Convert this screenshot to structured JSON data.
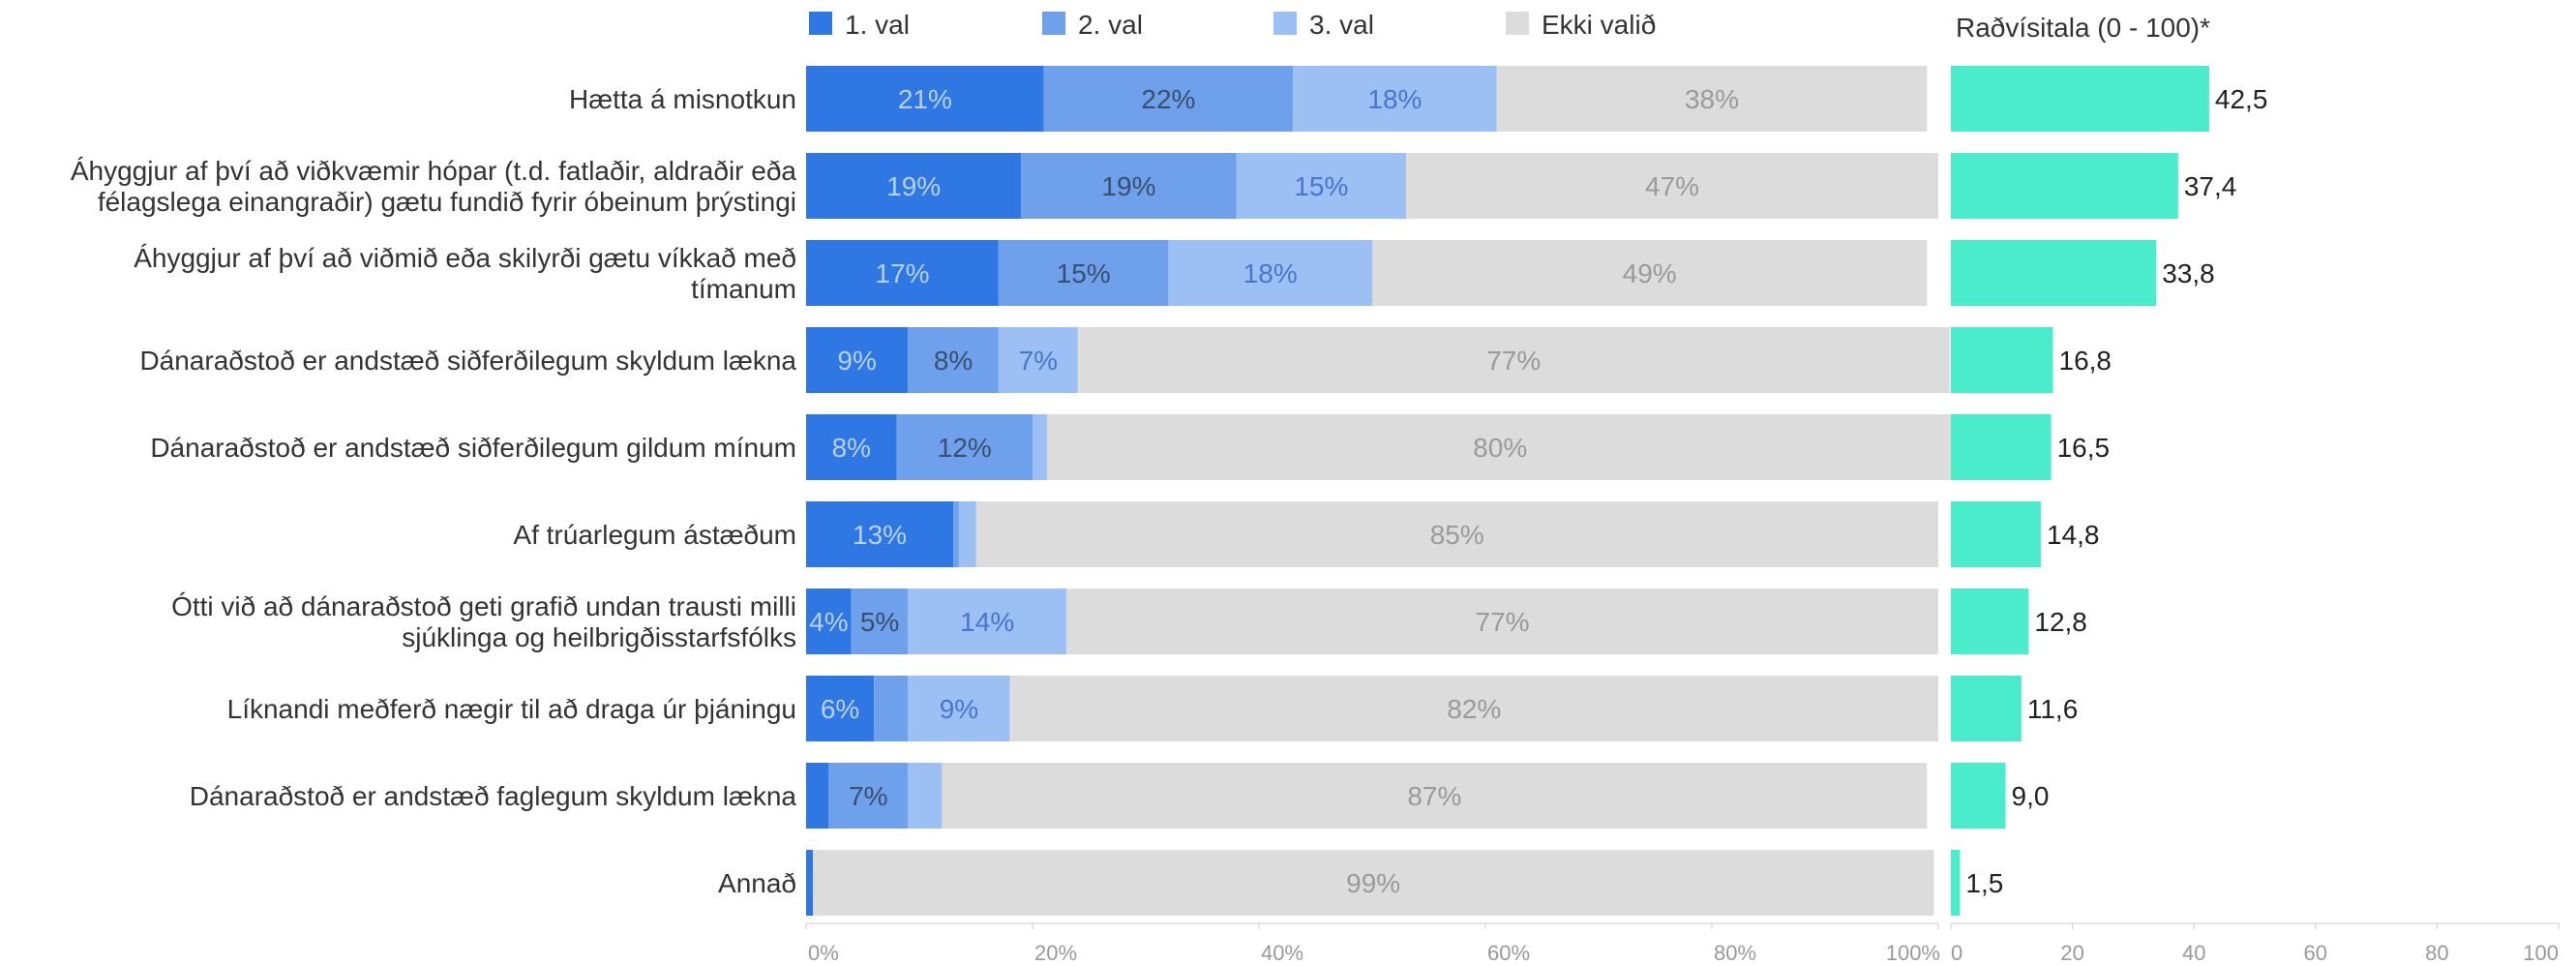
{
  "chart_data": [
    {
      "type": "bar",
      "orientation": "horizontal",
      "stacked": true,
      "percent": true,
      "categories": [
        [
          "Hætta á misnotkun"
        ],
        [
          "Áhyggjur af því að viðkvæmir hópar (t.d. fatlaðir, aldraðir eða",
          "félagslega einangraðir) gætu fundið fyrir óbeinum þrýstingi"
        ],
        [
          "Áhyggjur af því að viðmið eða skilyrði gætu víkkað með",
          "tímanum"
        ],
        [
          "Dánaraðstoð er andstæð siðferðilegum skyldum lækna"
        ],
        [
          "Dánaraðstoð er andstæð siðferðilegum gildum mínum"
        ],
        [
          "Af trúarlegum ástæðum"
        ],
        [
          "Ótti við að dánaraðstoð geti grafið undan trausti milli",
          "sjúklinga og heilbrigðisstarfsfólks"
        ],
        [
          "Líknandi meðferð nægir til að draga úr þjáningu"
        ],
        [
          "Dánaraðstoð er andstæð faglegum skyldum lækna"
        ],
        [
          "Annað"
        ]
      ],
      "series": [
        {
          "name": "1. val",
          "color": "#2f78e3",
          "values": [
            21,
            19,
            17,
            9,
            8,
            13,
            4,
            6,
            2,
            0.6
          ]
        },
        {
          "name": "2. val",
          "color": "#6ea0ec",
          "values": [
            22,
            19,
            15,
            8,
            12,
            0.5,
            5,
            3,
            7,
            0
          ]
        },
        {
          "name": "3. val",
          "color": "#9cbff4",
          "values": [
            18,
            15,
            18,
            7,
            1.3,
            1.5,
            14,
            9,
            3,
            0
          ]
        },
        {
          "name": "Ekki valið",
          "color": "#dcdcdc",
          "values": [
            38,
            47,
            49,
            77,
            80,
            85,
            77,
            82,
            87,
            99
          ]
        }
      ],
      "data_labels": [
        [
          "21%",
          "22%",
          "18%",
          "38%"
        ],
        [
          "19%",
          "19%",
          "15%",
          "47%"
        ],
        [
          "17%",
          "15%",
          "18%",
          "49%"
        ],
        [
          "9%",
          "8%",
          "7%",
          "77%"
        ],
        [
          "8%",
          "12%",
          "",
          "80%"
        ],
        [
          "13%",
          "",
          "",
          "85%"
        ],
        [
          "4%",
          "5%",
          "14%",
          "77%"
        ],
        [
          "6%",
          "",
          "9%",
          "82%"
        ],
        [
          "",
          "7%",
          "",
          "87%"
        ],
        [
          "",
          "",
          "",
          "99%"
        ]
      ],
      "label_colors": [
        "#b8d0f5",
        "#3a4f6e",
        "#4a76c9",
        "#9a9a9a"
      ],
      "xlim": [
        0,
        100
      ],
      "xticks": [
        "0%",
        "20%",
        "40%",
        "60%",
        "80%",
        "100%"
      ],
      "legend_position": "top"
    },
    {
      "type": "bar",
      "orientation": "horizontal",
      "title": "Raðvísitala (0 - 100)*",
      "color": "#4aeccc",
      "values": [
        42.5,
        37.4,
        33.8,
        16.8,
        16.5,
        14.8,
        12.8,
        11.6,
        9.0,
        1.5
      ],
      "value_labels": [
        "42,5",
        "37,4",
        "33,8",
        "16,8",
        "16,5",
        "14,8",
        "12,8",
        "11,6",
        "9,0",
        "1,5"
      ],
      "xlim": [
        0,
        100
      ],
      "xticks": [
        "0",
        "20",
        "40",
        "60",
        "80",
        "100"
      ]
    }
  ]
}
